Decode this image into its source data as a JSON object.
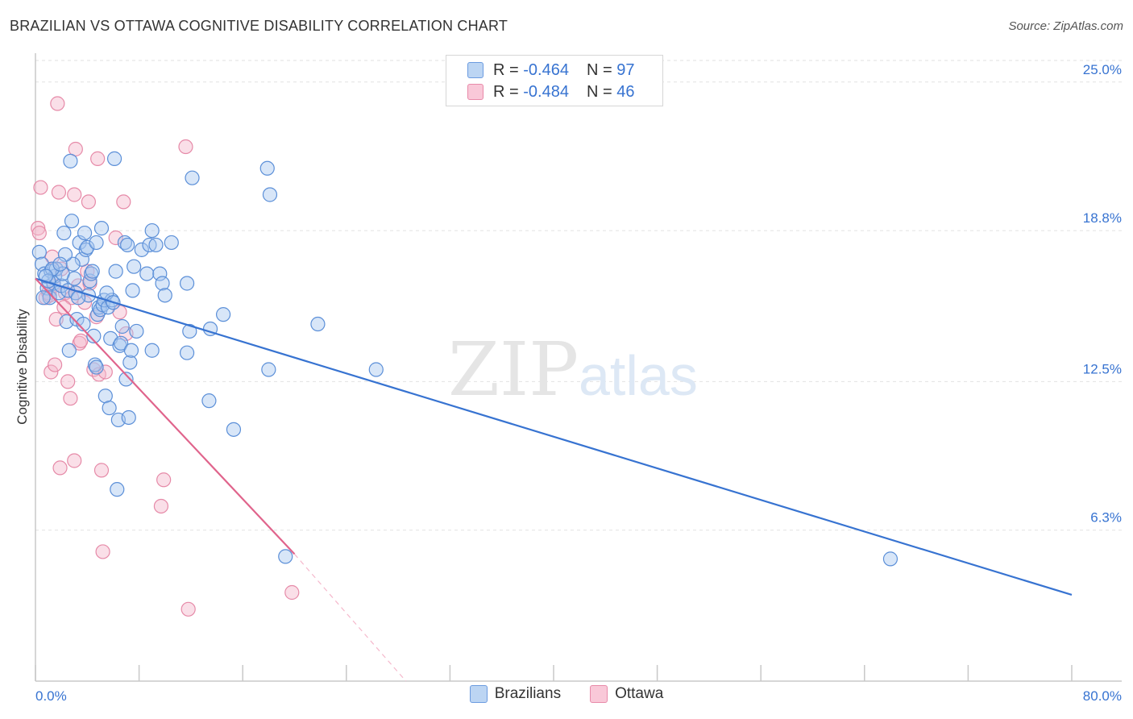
{
  "title": "BRAZILIAN VS OTTAWA COGNITIVE DISABILITY CORRELATION CHART",
  "source": "Source: ZipAtlas.com",
  "watermark": {
    "zip": "ZIP",
    "atlas": "atlas"
  },
  "colors": {
    "blue": "#3773d1",
    "blue_fill": "#a8c8f0",
    "blue_stroke": "#5b8fd8",
    "pink": "#e0648c",
    "pink_fill": "#f5b8cc",
    "pink_stroke": "#e68aa8",
    "tick_label": "#3773d1",
    "grid": "#e2e2e2"
  },
  "legend": {
    "rows": [
      {
        "series": "Brazilians",
        "r_label": "R =",
        "r_value": "-0.464",
        "n_label": "N =",
        "n_value": "97"
      },
      {
        "series": "Ottawa",
        "r_label": "R =",
        "r_value": "-0.484",
        "n_label": "N =",
        "n_value": "46"
      }
    ],
    "bottom": [
      "Brazilians",
      "Ottawa"
    ]
  },
  "chart_data": {
    "type": "scatter",
    "title": "BRAZILIAN VS OTTAWA COGNITIVE DISABILITY CORRELATION CHART",
    "xlabel": "",
    "ylabel": "Cognitive Disability",
    "xlim": [
      0,
      80
    ],
    "ylim": [
      0,
      25.9
    ],
    "x_tick_labels": [
      "0.0%",
      "80.0%"
    ],
    "y_ticks": [
      {
        "value": 6.3,
        "label": "6.3%"
      },
      {
        "value": 12.5,
        "label": "12.5%"
      },
      {
        "value": 18.8,
        "label": "18.8%"
      },
      {
        "value": 25.0,
        "label": "25.0%"
      }
    ],
    "grid": true,
    "series": [
      {
        "name": "Brazilians",
        "trend": {
          "x": [
            0,
            80
          ],
          "y": [
            16.8,
            3.6
          ]
        },
        "points": [
          [
            0.3,
            17.9
          ],
          [
            0.5,
            17.4
          ],
          [
            0.7,
            17.0
          ],
          [
            0.9,
            16.4
          ],
          [
            1.1,
            16.0
          ],
          [
            1.2,
            17.1
          ],
          [
            1.4,
            16.6
          ],
          [
            1.5,
            16.9
          ],
          [
            1.6,
            17.2
          ],
          [
            1.8,
            16.2
          ],
          [
            2.0,
            16.5
          ],
          [
            2.1,
            17.0
          ],
          [
            2.2,
            18.7
          ],
          [
            2.4,
            15.0
          ],
          [
            2.5,
            16.3
          ],
          [
            2.6,
            13.8
          ],
          [
            2.7,
            21.7
          ],
          [
            2.8,
            19.2
          ],
          [
            3.0,
            16.8
          ],
          [
            3.1,
            16.2
          ],
          [
            3.2,
            15.1
          ],
          [
            3.4,
            18.3
          ],
          [
            3.6,
            17.6
          ],
          [
            3.7,
            14.9
          ],
          [
            3.8,
            18.7
          ],
          [
            3.9,
            18.0
          ],
          [
            4.0,
            18.1
          ],
          [
            4.1,
            16.1
          ],
          [
            4.2,
            16.7
          ],
          [
            4.3,
            17.0
          ],
          [
            4.4,
            17.1
          ],
          [
            4.5,
            14.4
          ],
          [
            4.6,
            13.2
          ],
          [
            4.7,
            13.1
          ],
          [
            4.8,
            15.3
          ],
          [
            4.9,
            15.6
          ],
          [
            5.0,
            15.5
          ],
          [
            5.1,
            18.9
          ],
          [
            5.2,
            15.7
          ],
          [
            5.3,
            15.9
          ],
          [
            5.4,
            11.9
          ],
          [
            5.6,
            15.6
          ],
          [
            5.8,
            14.3
          ],
          [
            5.9,
            15.9
          ],
          [
            6.1,
            21.8
          ],
          [
            6.2,
            17.1
          ],
          [
            6.3,
            8.0
          ],
          [
            6.4,
            10.9
          ],
          [
            6.5,
            14.0
          ],
          [
            6.6,
            14.1
          ],
          [
            6.7,
            14.8
          ],
          [
            6.9,
            18.3
          ],
          [
            7.0,
            12.6
          ],
          [
            7.1,
            18.2
          ],
          [
            7.2,
            11.0
          ],
          [
            7.3,
            13.3
          ],
          [
            7.4,
            13.8
          ],
          [
            7.5,
            16.3
          ],
          [
            7.6,
            17.3
          ],
          [
            8.2,
            18.0
          ],
          [
            8.6,
            17.0
          ],
          [
            8.8,
            18.2
          ],
          [
            9.0,
            13.8
          ],
          [
            9.0,
            18.8
          ],
          [
            9.3,
            18.2
          ],
          [
            9.6,
            17.0
          ],
          [
            9.8,
            16.6
          ],
          [
            10.0,
            16.1
          ],
          [
            10.5,
            18.3
          ],
          [
            11.7,
            16.6
          ],
          [
            11.7,
            13.7
          ],
          [
            11.9,
            14.6
          ],
          [
            12.1,
            21.0
          ],
          [
            13.4,
            11.7
          ],
          [
            13.5,
            14.7
          ],
          [
            14.5,
            15.3
          ],
          [
            15.3,
            10.5
          ],
          [
            17.9,
            21.4
          ],
          [
            18.0,
            13.0
          ],
          [
            18.1,
            20.3
          ],
          [
            19.3,
            5.2
          ],
          [
            21.8,
            14.9
          ],
          [
            26.3,
            13.0
          ],
          [
            66.0,
            5.1
          ],
          [
            1.3,
            17.2
          ],
          [
            2.9,
            17.4
          ],
          [
            3.3,
            16.0
          ],
          [
            5.7,
            11.4
          ],
          [
            0.6,
            16.0
          ],
          [
            1.0,
            16.7
          ],
          [
            2.3,
            17.8
          ],
          [
            4.7,
            18.3
          ],
          [
            1.9,
            17.4
          ],
          [
            0.8,
            16.9
          ],
          [
            5.5,
            16.2
          ],
          [
            6.0,
            15.8
          ],
          [
            7.8,
            14.6
          ]
        ]
      },
      {
        "name": "Ottawa",
        "trend": {
          "x": [
            0,
            20
          ],
          "y": [
            16.8,
            5.3
          ]
        },
        "trend_extension": {
          "x": [
            20,
            28.6
          ],
          "y": [
            5.3,
            0.0
          ]
        },
        "points": [
          [
            0.2,
            18.9
          ],
          [
            0.3,
            18.7
          ],
          [
            0.4,
            20.6
          ],
          [
            0.8,
            16.0
          ],
          [
            1.0,
            16.2
          ],
          [
            1.1,
            16.1
          ],
          [
            1.2,
            12.9
          ],
          [
            1.4,
            16.5
          ],
          [
            1.5,
            13.2
          ],
          [
            1.6,
            15.1
          ],
          [
            1.7,
            24.1
          ],
          [
            1.8,
            20.4
          ],
          [
            1.9,
            8.9
          ],
          [
            2.0,
            17.2
          ],
          [
            2.3,
            16.2
          ],
          [
            2.5,
            12.5
          ],
          [
            2.7,
            11.8
          ],
          [
            2.8,
            16.0
          ],
          [
            3.0,
            9.2
          ],
          [
            3.0,
            20.3
          ],
          [
            3.1,
            22.2
          ],
          [
            3.3,
            16.5
          ],
          [
            3.4,
            14.1
          ],
          [
            3.5,
            14.2
          ],
          [
            3.8,
            15.8
          ],
          [
            4.1,
            20.0
          ],
          [
            4.2,
            16.6
          ],
          [
            4.5,
            13.0
          ],
          [
            4.7,
            15.2
          ],
          [
            4.8,
            21.8
          ],
          [
            4.9,
            12.8
          ],
          [
            5.1,
            8.8
          ],
          [
            5.2,
            5.4
          ],
          [
            5.4,
            12.9
          ],
          [
            6.2,
            18.5
          ],
          [
            6.5,
            15.4
          ],
          [
            6.8,
            20.0
          ],
          [
            7.0,
            14.5
          ],
          [
            9.7,
            7.3
          ],
          [
            9.9,
            8.4
          ],
          [
            11.6,
            22.3
          ],
          [
            11.8,
            3.0
          ],
          [
            19.8,
            3.7
          ],
          [
            2.2,
            15.6
          ],
          [
            4.0,
            17.1
          ],
          [
            1.3,
            17.7
          ]
        ]
      }
    ]
  }
}
